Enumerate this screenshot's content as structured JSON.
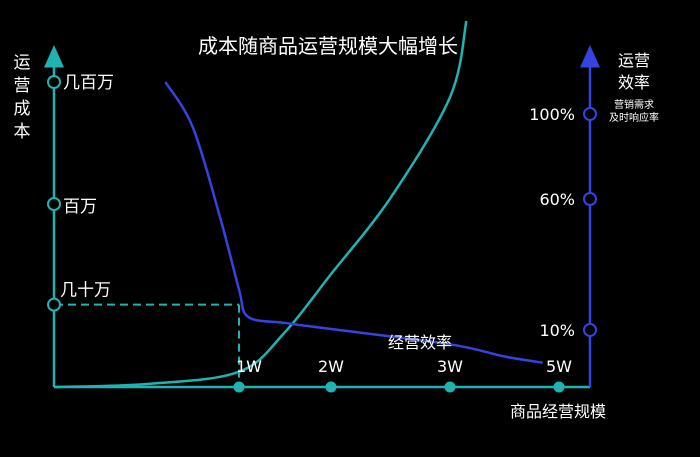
{
  "chart_data": {
    "type": "line",
    "title": "成本随商品运营规模大幅增长",
    "xlabel": "商品经营规模",
    "ylabel_left": "运营成本",
    "ylabel_right": "运营效率",
    "ylabel_right_note": [
      "营销需求",
      "及时响应率"
    ],
    "x_ticks": [
      {
        "label": "1W",
        "value": 1
      },
      {
        "label": "2W",
        "value": 2
      },
      {
        "label": "3W",
        "value": 3
      },
      {
        "label": "5W",
        "value": 5
      }
    ],
    "y_left_ticks": [
      {
        "label": "几十万",
        "level": 0.27
      },
      {
        "label": "百万",
        "level": 0.6
      },
      {
        "label": "几百万",
        "level": 1.0
      }
    ],
    "y_right_ticks": [
      {
        "label": "10%",
        "level": 0.2
      },
      {
        "label": "60%",
        "level": 0.65
      },
      {
        "label": "100%",
        "level": 0.92
      }
    ],
    "series": [
      {
        "name": "",
        "color": "#1fb3b3",
        "points": [
          [
            0,
            0.0
          ],
          [
            0.5,
            0.01
          ],
          [
            1,
            0.05
          ],
          [
            1.5,
            0.18
          ],
          [
            2,
            0.37
          ],
          [
            2.5,
            0.62
          ],
          [
            3,
            0.95
          ],
          [
            3.3,
            1.2
          ]
        ]
      },
      {
        "name": "经营效率",
        "color": "#3344e0",
        "points": [
          [
            0.6,
            1.0
          ],
          [
            0.75,
            0.85
          ],
          [
            0.9,
            0.55
          ],
          [
            1,
            0.32
          ],
          [
            1.1,
            0.23
          ],
          [
            1.5,
            0.21
          ],
          [
            2,
            0.19
          ],
          [
            3,
            0.14
          ],
          [
            4,
            0.1
          ],
          [
            4.7,
            0.08
          ]
        ]
      }
    ],
    "annotations": [
      {
        "text": "经营效率",
        "near_series": 1
      }
    ],
    "reference": {
      "label": "几十万",
      "x": 1
    }
  }
}
